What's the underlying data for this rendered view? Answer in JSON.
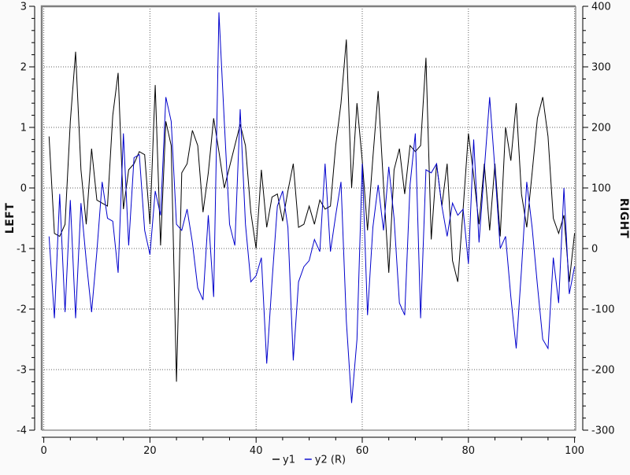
{
  "chart_data": {
    "type": "line",
    "title": "",
    "x": {
      "start": 1,
      "step": 1,
      "count": 100
    },
    "series": [
      {
        "name": "y1",
        "axis": "left",
        "color": "#000000",
        "values": [
          0.85,
          -0.75,
          -0.8,
          -0.6,
          1.1,
          2.25,
          0.3,
          -0.6,
          0.65,
          -0.2,
          -0.25,
          -0.3,
          1.2,
          1.9,
          -0.35,
          0.3,
          0.4,
          0.6,
          0.55,
          -0.6,
          1.7,
          -0.95,
          1.1,
          0.7,
          -3.2,
          0.25,
          0.4,
          0.95,
          0.7,
          -0.4,
          0.25,
          1.15,
          0.6,
          0,
          0.35,
          0.7,
          1.05,
          0.7,
          -0.4,
          -1,
          0.3,
          -0.65,
          -0.15,
          -0.1,
          -0.55,
          -0.05,
          0.4,
          -0.65,
          -0.6,
          -0.3,
          -0.6,
          -0.2,
          -0.35,
          -0.3,
          0.7,
          1.4,
          2.45,
          0,
          1.4,
          0.45,
          -0.7,
          0.5,
          1.6,
          0.05,
          -1.4,
          0.3,
          0.65,
          -0.1,
          0.7,
          0.6,
          0.7,
          2.15,
          -0.85,
          0.4,
          -0.3,
          0.4,
          -1.2,
          -1.55,
          -0.35,
          0.9,
          0.2,
          -0.6,
          0.4,
          -0.7,
          0.4,
          -0.8,
          1,
          0.45,
          1.4,
          -0.1,
          -0.65,
          0.25,
          1.15,
          1.5,
          0.85,
          -0.5,
          -0.75,
          -0.45,
          -1.55,
          -0.75
        ]
      },
      {
        "name": "y2 (R)",
        "axis": "right",
        "color": "#0000cc",
        "values": [
          20,
          -115,
          90,
          -105,
          80,
          -115,
          75,
          -20,
          -105,
          -5,
          110,
          50,
          45,
          -40,
          190,
          5,
          150,
          155,
          30,
          -10,
          95,
          55,
          250,
          210,
          40,
          30,
          65,
          10,
          -65,
          -85,
          55,
          -80,
          390,
          210,
          40,
          5,
          230,
          40,
          -55,
          -45,
          -15,
          -190,
          -55,
          70,
          95,
          35,
          -185,
          -55,
          -30,
          -20,
          15,
          -5,
          140,
          -5,
          55,
          110,
          -120,
          -255,
          -150,
          140,
          -110,
          35,
          105,
          30,
          135,
          50,
          -90,
          -110,
          105,
          190,
          -115,
          130,
          125,
          140,
          70,
          20,
          75,
          55,
          65,
          -25,
          180,
          10,
          130,
          250,
          130,
          0,
          20,
          -80,
          -165,
          -35,
          110,
          35,
          -60,
          -150,
          -165,
          -15,
          -90,
          100,
          -75,
          -30
        ]
      }
    ],
    "axes": {
      "left": {
        "label": "LEFT",
        "min": -4,
        "max": 3,
        "major_step": 1,
        "minor_step": 0.2,
        "ticks": [
          3,
          2,
          1,
          0,
          -1,
          -2,
          -3,
          -4
        ]
      },
      "right": {
        "label": "RIGHT",
        "min": -300,
        "max": 400,
        "major_step": 100,
        "minor_step": 20,
        "ticks": [
          400,
          300,
          200,
          100,
          0,
          -100,
          -200,
          -300
        ]
      },
      "x": {
        "label": "",
        "min": 0,
        "max": 100,
        "major_step": 20,
        "minor_step": 5,
        "ticks": [
          0,
          20,
          40,
          60,
          80,
          100
        ]
      }
    },
    "grid": {
      "on": true,
      "style": "dotted",
      "color": "#606060"
    },
    "legend": {
      "position": "bottom-center",
      "entries": [
        {
          "label": "y1",
          "color": "#000000"
        },
        {
          "label": "y2 (R)",
          "color": "#0000cc"
        }
      ]
    },
    "layout_colors": {
      "background": "#fafafa",
      "plot_background": "#ffffff",
      "plot_border": "#7e7e7e",
      "axis_color": "#000000"
    }
  }
}
